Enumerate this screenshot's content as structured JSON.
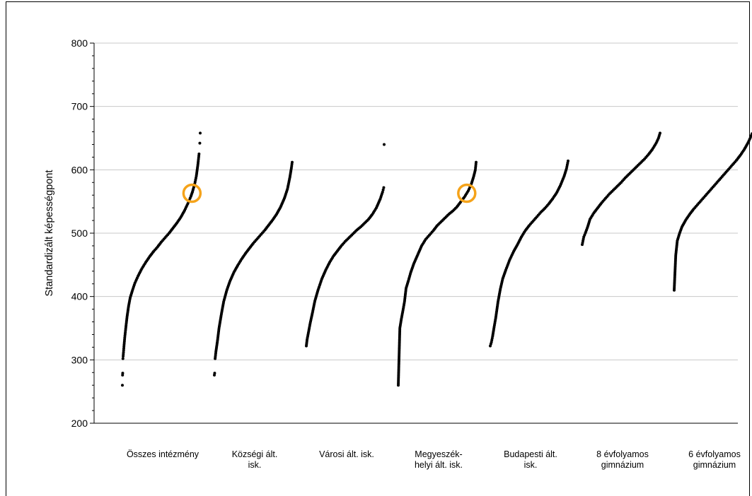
{
  "header_text": "",
  "chart_data": {
    "type": "scatter",
    "title": "",
    "xlabel": "",
    "ylabel": "Standardizált képességpont",
    "ylim": [
      200,
      800
    ],
    "yticks": [
      200,
      300,
      400,
      500,
      600,
      700,
      800
    ],
    "grid": true,
    "categories": [
      "Összes intézmény",
      "Községi ált. isk.",
      "Városi ált. isk.",
      "Megyeszék-helyi ált. isk.",
      "Budapesti ált. isk.",
      "8 évfolyamos gimnázium",
      "6 évfolyamos gimnázium"
    ],
    "category_label_lines": [
      [
        "Összes intézmény"
      ],
      [
        "Községi ált.",
        "isk."
      ],
      [
        "Városi ált. isk."
      ],
      [
        "Megyeszék-",
        "helyi ált. isk."
      ],
      [
        "Budapesti ált.",
        "isk."
      ],
      [
        "8 évfolyamos",
        "gimnázium"
      ],
      [
        "6 évfolyamos",
        "gimnázium"
      ]
    ],
    "series": [
      {
        "points": [
          [
            0,
            260
          ],
          [
            0.002,
            276
          ],
          [
            0.004,
            279
          ],
          [
            0.007,
            302
          ],
          [
            0.01,
            306
          ],
          [
            0.014,
            312
          ],
          [
            0.02,
            321
          ],
          [
            0.03,
            335
          ],
          [
            0.045,
            352
          ],
          [
            0.06,
            368
          ],
          [
            0.08,
            385
          ],
          [
            0.1,
            398
          ],
          [
            0.13,
            410
          ],
          [
            0.16,
            421
          ],
          [
            0.2,
            432
          ],
          [
            0.25,
            444
          ],
          [
            0.3,
            454
          ],
          [
            0.35,
            463
          ],
          [
            0.4,
            471
          ],
          [
            0.45,
            478
          ],
          [
            0.5,
            486
          ],
          [
            0.55,
            493
          ],
          [
            0.6,
            500
          ],
          [
            0.65,
            508
          ],
          [
            0.7,
            516
          ],
          [
            0.75,
            525
          ],
          [
            0.8,
            536
          ],
          [
            0.85,
            549
          ],
          [
            0.88,
            558
          ],
          [
            0.9,
            565
          ],
          [
            0.93,
            578
          ],
          [
            0.95,
            590
          ],
          [
            0.97,
            608
          ],
          [
            0.985,
            625
          ],
          [
            0.995,
            642
          ],
          [
            1,
            658
          ]
        ]
      },
      {
        "points": [
          [
            0,
            276
          ],
          [
            0.004,
            279
          ],
          [
            0.01,
            302
          ],
          [
            0.02,
            313
          ],
          [
            0.04,
            330
          ],
          [
            0.06,
            350
          ],
          [
            0.09,
            372
          ],
          [
            0.12,
            392
          ],
          [
            0.16,
            410
          ],
          [
            0.2,
            424
          ],
          [
            0.25,
            438
          ],
          [
            0.3,
            449
          ],
          [
            0.35,
            459
          ],
          [
            0.4,
            468
          ],
          [
            0.45,
            476
          ],
          [
            0.5,
            484
          ],
          [
            0.55,
            491
          ],
          [
            0.6,
            498
          ],
          [
            0.65,
            505
          ],
          [
            0.7,
            513
          ],
          [
            0.75,
            521
          ],
          [
            0.8,
            530
          ],
          [
            0.85,
            541
          ],
          [
            0.9,
            555
          ],
          [
            0.94,
            570
          ],
          [
            0.97,
            588
          ],
          [
            0.99,
            603
          ],
          [
            1,
            612
          ]
        ]
      },
      {
        "points": [
          [
            0,
            322
          ],
          [
            0.01,
            332
          ],
          [
            0.03,
            345
          ],
          [
            0.05,
            358
          ],
          [
            0.08,
            375
          ],
          [
            0.11,
            393
          ],
          [
            0.15,
            410
          ],
          [
            0.2,
            428
          ],
          [
            0.25,
            442
          ],
          [
            0.3,
            454
          ],
          [
            0.35,
            464
          ],
          [
            0.4,
            472
          ],
          [
            0.45,
            480
          ],
          [
            0.5,
            487
          ],
          [
            0.55,
            493
          ],
          [
            0.6,
            499
          ],
          [
            0.65,
            505
          ],
          [
            0.7,
            510
          ],
          [
            0.75,
            516
          ],
          [
            0.8,
            522
          ],
          [
            0.85,
            530
          ],
          [
            0.9,
            540
          ],
          [
            0.95,
            554
          ],
          [
            0.98,
            565
          ],
          [
            0.995,
            572
          ],
          [
            1,
            640
          ]
        ]
      },
      {
        "points": [
          [
            0,
            260
          ],
          [
            0.02,
            350
          ],
          [
            0.04,
            365
          ],
          [
            0.06,
            378
          ],
          [
            0.08,
            392
          ],
          [
            0.1,
            413
          ],
          [
            0.13,
            425
          ],
          [
            0.16,
            438
          ],
          [
            0.2,
            452
          ],
          [
            0.25,
            466
          ],
          [
            0.3,
            480
          ],
          [
            0.35,
            490
          ],
          [
            0.4,
            497
          ],
          [
            0.45,
            504
          ],
          [
            0.5,
            512
          ],
          [
            0.55,
            518
          ],
          [
            0.6,
            524
          ],
          [
            0.65,
            530
          ],
          [
            0.7,
            535
          ],
          [
            0.75,
            541
          ],
          [
            0.8,
            549
          ],
          [
            0.85,
            557
          ],
          [
            0.9,
            567
          ],
          [
            0.94,
            578
          ],
          [
            0.97,
            590
          ],
          [
            0.99,
            600
          ],
          [
            1,
            612
          ]
        ]
      },
      {
        "points": [
          [
            0,
            322
          ],
          [
            0.015,
            328
          ],
          [
            0.03,
            337
          ],
          [
            0.05,
            352
          ],
          [
            0.07,
            366
          ],
          [
            0.1,
            392
          ],
          [
            0.13,
            412
          ],
          [
            0.16,
            428
          ],
          [
            0.2,
            442
          ],
          [
            0.25,
            458
          ],
          [
            0.3,
            471
          ],
          [
            0.35,
            482
          ],
          [
            0.4,
            494
          ],
          [
            0.45,
            504
          ],
          [
            0.5,
            512
          ],
          [
            0.55,
            519
          ],
          [
            0.6,
            526
          ],
          [
            0.65,
            533
          ],
          [
            0.7,
            539
          ],
          [
            0.75,
            546
          ],
          [
            0.8,
            554
          ],
          [
            0.85,
            563
          ],
          [
            0.9,
            575
          ],
          [
            0.95,
            590
          ],
          [
            0.98,
            602
          ],
          [
            1,
            614
          ]
        ]
      },
      {
        "points": [
          [
            0,
            482
          ],
          [
            0.02,
            494
          ],
          [
            0.04,
            500
          ],
          [
            0.07,
            510
          ],
          [
            0.1,
            522
          ],
          [
            0.15,
            532
          ],
          [
            0.2,
            540
          ],
          [
            0.25,
            548
          ],
          [
            0.3,
            555
          ],
          [
            0.35,
            562
          ],
          [
            0.4,
            568
          ],
          [
            0.45,
            574
          ],
          [
            0.5,
            580
          ],
          [
            0.55,
            587
          ],
          [
            0.6,
            593
          ],
          [
            0.65,
            599
          ],
          [
            0.7,
            605
          ],
          [
            0.75,
            611
          ],
          [
            0.8,
            617
          ],
          [
            0.85,
            624
          ],
          [
            0.9,
            632
          ],
          [
            0.95,
            642
          ],
          [
            0.98,
            650
          ],
          [
            1,
            658
          ]
        ]
      },
      {
        "points": [
          [
            0,
            410
          ],
          [
            0.02,
            465
          ],
          [
            0.04,
            488
          ],
          [
            0.07,
            500
          ],
          [
            0.1,
            510
          ],
          [
            0.15,
            521
          ],
          [
            0.2,
            530
          ],
          [
            0.25,
            538
          ],
          [
            0.3,
            545
          ],
          [
            0.35,
            552
          ],
          [
            0.4,
            559
          ],
          [
            0.45,
            566
          ],
          [
            0.5,
            573
          ],
          [
            0.55,
            580
          ],
          [
            0.6,
            587
          ],
          [
            0.65,
            594
          ],
          [
            0.7,
            601
          ],
          [
            0.75,
            608
          ],
          [
            0.8,
            615
          ],
          [
            0.85,
            623
          ],
          [
            0.9,
            632
          ],
          [
            0.95,
            643
          ],
          [
            0.98,
            651
          ],
          [
            1,
            657
          ]
        ]
      }
    ],
    "highlights": [
      {
        "category_index": 0,
        "y": 563,
        "color": "#f5a31a"
      },
      {
        "category_index": 3,
        "y": 563,
        "color": "#f5a31a"
      }
    ],
    "marker_color": "#000000",
    "grid_color": "#c8c8c8"
  }
}
